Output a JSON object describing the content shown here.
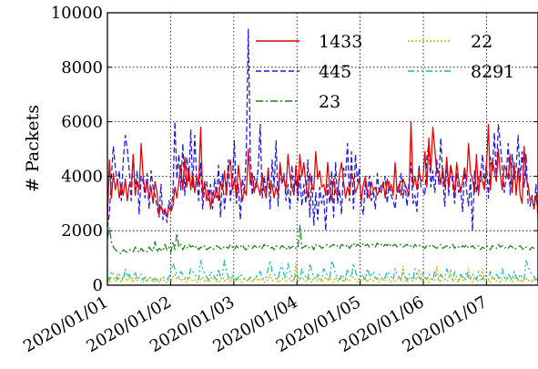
{
  "chart_data": {
    "type": "line",
    "title": "",
    "xlabel": "",
    "ylabel": "# Packets",
    "ylim": [
      0,
      10000
    ],
    "y_ticks": [
      "0",
      "2000",
      "4000",
      "6000",
      "8000",
      "10000"
    ],
    "x_ticks": [
      "2020/01/01",
      "2020/01/02",
      "2020/01/03",
      "2020/01/04",
      "2020/01/05",
      "2020/01/06",
      "2020/01/07"
    ],
    "grid": "dotted",
    "legend_position": "top-right",
    "series": [
      {
        "name": "1433",
        "color": "#e00000",
        "dash": "solid",
        "values": [
          2400,
          4600,
          3200,
          4100,
          3500,
          3900,
          3200,
          3700,
          3300,
          3900,
          3100,
          3700,
          3600,
          4800,
          3300,
          3800,
          3500,
          5200,
          4000,
          3400,
          3800,
          3200,
          3600,
          3000,
          3800,
          3400,
          2600,
          2900,
          2700,
          2800,
          2500,
          2900,
          2700,
          2900,
          3600,
          3200,
          3800,
          4400,
          3500,
          4700,
          3600,
          4300,
          3500,
          4100,
          3400,
          4000,
          3700,
          5800,
          3300,
          3800,
          3100,
          3500,
          2800,
          3400,
          3200,
          3600,
          3100,
          3800,
          3500,
          4200,
          3300,
          4300,
          4600,
          3500,
          3900,
          3200,
          4400,
          3800,
          3100,
          3500,
          3300,
          5000,
          3700,
          4100,
          3400,
          3800,
          3600,
          3300,
          4100,
          3500,
          3200,
          4300,
          3500,
          3700,
          3200,
          3600,
          3300,
          4500,
          3800,
          3900,
          3500,
          4800,
          4000,
          3600,
          3300,
          4400,
          3500,
          4800,
          4000,
          4500,
          3700,
          3200,
          4100,
          3600,
          3500,
          4900,
          3900,
          4200,
          3600,
          3700,
          3300,
          4500,
          3600,
          3100,
          3900,
          3400,
          3300,
          4100,
          4500,
          3800,
          3200,
          3600,
          3300,
          4100,
          3900,
          3400,
          3600,
          3900,
          3100,
          3700,
          4000,
          3400,
          3200,
          3800,
          3500,
          3600,
          3300,
          3500,
          3400,
          3800,
          3200,
          3900,
          3500,
          3700,
          3300,
          4500,
          3400,
          3700,
          3300,
          3900,
          3700,
          3500,
          3300,
          6000,
          3600,
          4000,
          3500,
          4200,
          3800,
          3900,
          4900,
          3600,
          5400,
          4200,
          5800,
          5000,
          4100,
          4200,
          3700,
          4300,
          3600,
          4700,
          3600,
          4400,
          4000,
          3300,
          4500,
          3900,
          3400,
          3800,
          4300,
          3800,
          5200,
          4100,
          3900,
          3400,
          4800,
          3300,
          4200,
          3800,
          3500,
          4300,
          5900,
          3500,
          4600,
          4200,
          3800,
          5000,
          4100,
          3500,
          4400,
          4200,
          3900,
          4800,
          3400,
          4500,
          3300,
          4300,
          3300,
          3000,
          5100,
          3900,
          3700,
          3100,
          3200,
          2800,
          3300,
          2700
        ]
      },
      {
        "name": "445",
        "color": "#1a1ad8",
        "dash": "dashed",
        "values": [
          2100,
          2600,
          4000,
          5100,
          4300,
          3800,
          4200,
          3100,
          4600,
          5500,
          5000,
          4200,
          3100,
          4800,
          3500,
          4200,
          2600,
          4000,
          3800,
          3200,
          4100,
          2800,
          4200,
          3600,
          3300,
          2900,
          2500,
          3700,
          2400,
          2800,
          2300,
          3100,
          2800,
          3300,
          6000,
          3900,
          4800,
          3500,
          5200,
          3300,
          4700,
          3800,
          5700,
          3600,
          5500,
          3900,
          3100,
          4500,
          2800,
          3600,
          3800,
          3100,
          3700,
          2800,
          3900,
          3200,
          4400,
          2500,
          4100,
          2800,
          3600,
          4600,
          3100,
          3900,
          5300,
          3000,
          3700,
          2400,
          3900,
          3400,
          4900,
          9400,
          4800,
          3300,
          4000,
          3600,
          4300,
          5900,
          3200,
          4000,
          3400,
          4200,
          2800,
          4600,
          3600,
          5300,
          2900,
          4300,
          3700,
          4100,
          3100,
          3700,
          2800,
          4400,
          3400,
          3900,
          3100,
          4100,
          2900,
          3700,
          3000,
          4600,
          2500,
          4000,
          2200,
          3400,
          2400,
          3600,
          3000,
          3300,
          2000,
          3700,
          3000,
          4200,
          2500,
          4500,
          3000,
          3500,
          2600,
          4300,
          4000,
          5200,
          3100,
          4900,
          2800,
          4800,
          3800,
          4300,
          2900,
          2600,
          3800,
          3200,
          4000,
          3100,
          3500,
          2800,
          4100,
          3400,
          3700,
          3600,
          4000,
          3000,
          3800,
          3300,
          3100,
          2800,
          3600,
          3400,
          4100,
          3200,
          3700,
          2900,
          3800,
          4500,
          3000,
          3300,
          2700,
          4400,
          3600,
          3500,
          3300,
          4700,
          5200,
          3600,
          4200,
          3400,
          4600,
          3700,
          5400,
          4000,
          2900,
          4600,
          3300,
          4400,
          3700,
          3000,
          4100,
          3400,
          3600,
          2700,
          4300,
          3500,
          2900,
          3900,
          2000,
          4200,
          3400,
          4000,
          3800,
          4800,
          3700,
          4500,
          3200,
          4700,
          4200,
          5600,
          3900,
          5900,
          5200,
          4300,
          3400,
          4000,
          5200,
          3300,
          4800,
          3900,
          4300,
          5500,
          3800,
          4900,
          3600,
          4800,
          3000,
          2900,
          3300,
          2800,
          3700,
          2400,
          3400,
          3000,
          3700,
          3800
        ]
      },
      {
        "name": "23",
        "color": "#148214",
        "dash": "dashdot",
        "values": [
          1700,
          2100,
          1600,
          1400,
          1300,
          1250,
          1200,
          1150,
          1300,
          1250,
          1200,
          1300,
          1280,
          1220,
          1400,
          1300,
          1200,
          1350,
          1250,
          1300,
          1220,
          1400,
          1300,
          1250,
          1600,
          1200,
          1350,
          1300,
          1250,
          1500,
          1300,
          1400,
          1200,
          1600,
          1300,
          1900,
          1400,
          1500,
          1300,
          1450,
          1350,
          1500,
          1400,
          1450,
          1350,
          1450,
          1300,
          1400,
          1350,
          1450,
          1300,
          1350,
          1400,
          1300,
          1350,
          1450,
          1400,
          1350,
          1300,
          1450,
          1400,
          1350,
          1500,
          1400,
          1300,
          1450,
          1350,
          1400,
          1500,
          1350,
          1300,
          1450,
          1400,
          1350,
          1450,
          1400,
          1350,
          1450,
          1350,
          1500,
          1400,
          1450,
          1350,
          1400,
          1300,
          1450,
          1400,
          1350,
          1450,
          1400,
          1300,
          1450,
          1350,
          1400,
          1450,
          1350,
          1350,
          2200,
          1350,
          1400,
          1450,
          1350,
          1400,
          1450,
          1300,
          1500,
          1400,
          1450,
          1350,
          1400,
          1450,
          1500,
          1400,
          1450,
          1500,
          1400,
          1450,
          1350,
          1500,
          1450,
          1400,
          1500,
          1350,
          1450,
          1550,
          1400,
          1500,
          1450,
          1400,
          1550,
          1450,
          1500,
          1400,
          1450,
          1500,
          1400,
          1550,
          1450,
          1500,
          1400,
          1500,
          1450,
          1550,
          1400,
          1450,
          1500,
          1400,
          1450,
          1500,
          1400,
          1450,
          1500,
          1400,
          1450,
          1350,
          1500,
          1400,
          1450,
          1500,
          1400,
          1350,
          1450,
          1400,
          1500,
          1450,
          1400,
          1350,
          1450,
          1500,
          1350,
          1400,
          1450,
          1350,
          1400,
          1500,
          1350,
          1450,
          1400,
          1350,
          1450,
          1400,
          1500,
          1350,
          1400,
          1450,
          1350,
          1400,
          1450,
          1300,
          1400,
          1350,
          1450,
          1400,
          1300,
          1450,
          1400,
          1350,
          1500,
          1400,
          1450,
          1350,
          1400,
          1350,
          1450,
          1400,
          1300,
          1350,
          1400,
          1450,
          1350,
          1300,
          1400,
          1350,
          1300,
          1400,
          1350,
          1300
        ]
      },
      {
        "name": "22",
        "color": "#c8b400",
        "dash": "dotted",
        "values": [
          200,
          100,
          300,
          250,
          150,
          400,
          200,
          100,
          300,
          250,
          150,
          300,
          200,
          100,
          250,
          150,
          300,
          200,
          100,
          200,
          150,
          300,
          250,
          100,
          200,
          150,
          100,
          250,
          200,
          150,
          100,
          200,
          150,
          300,
          400,
          200,
          300,
          150,
          250,
          200,
          100,
          300,
          250,
          150,
          200,
          100,
          250,
          200,
          300,
          150,
          200,
          100,
          250,
          300,
          200,
          150,
          100,
          200,
          300,
          150,
          250,
          200,
          100,
          300,
          200,
          150,
          250,
          200,
          100,
          300,
          150,
          200,
          250,
          100,
          200,
          300,
          150,
          250,
          200,
          100,
          150,
          200,
          400,
          150,
          200,
          250,
          100,
          150,
          200,
          300,
          150,
          200,
          250,
          100,
          200,
          800,
          150,
          250,
          300,
          200,
          150,
          300,
          250,
          100,
          300,
          200,
          150,
          250,
          100,
          200,
          300,
          150,
          250,
          200,
          100,
          300,
          150,
          200,
          250,
          100,
          300,
          200,
          150,
          250,
          300,
          200,
          100,
          250,
          150,
          200,
          300,
          100,
          250,
          200,
          150,
          300,
          200,
          100,
          250,
          200,
          150,
          300,
          200,
          100,
          250,
          150,
          200,
          300,
          150,
          700,
          200,
          100,
          250,
          200,
          150,
          300,
          200,
          600,
          250,
          150,
          300,
          200,
          100,
          250,
          200,
          150,
          700,
          200,
          100,
          300,
          250,
          150,
          200,
          600,
          150,
          250,
          200,
          100,
          300,
          200,
          150,
          250,
          600,
          200,
          100,
          300,
          250,
          150,
          200,
          600,
          150,
          250,
          200,
          100,
          300,
          200,
          150,
          250,
          100,
          200,
          300,
          150,
          250,
          200,
          100,
          300,
          250,
          150,
          200,
          100,
          300,
          250,
          150,
          200,
          100,
          250,
          150,
          200,
          300,
          150,
          200,
          250
        ]
      },
      {
        "name": "8291",
        "color": "#1ab8b8",
        "dash": "dashdotdot",
        "values": [
          300,
          200,
          500,
          400,
          300,
          200,
          400,
          300,
          200,
          600,
          300,
          400,
          200,
          300,
          500,
          200,
          300,
          400,
          200,
          300,
          150,
          200,
          300,
          200,
          250,
          200,
          150,
          200,
          300,
          250,
          200,
          300,
          500,
          800,
          600,
          400,
          300,
          500,
          400,
          300,
          200,
          300,
          600,
          500,
          400,
          300,
          200,
          900,
          600,
          400,
          300,
          200,
          500,
          400,
          300,
          200,
          600,
          300,
          400,
          900,
          500,
          300,
          200,
          400,
          300,
          200,
          300,
          400,
          300,
          200,
          150,
          200,
          300,
          250,
          200,
          300,
          400,
          500,
          300,
          200,
          300,
          600,
          900,
          500,
          400,
          300,
          200,
          600,
          700,
          400,
          300,
          800,
          500,
          300,
          200,
          400,
          300,
          200,
          600,
          400,
          300,
          200,
          800,
          500,
          300,
          200,
          400,
          300,
          200,
          600,
          500,
          300,
          200,
          900,
          700,
          400,
          300,
          200,
          400,
          300,
          200,
          600,
          400,
          300,
          800,
          500,
          300,
          200,
          400,
          300,
          200,
          600,
          400,
          300,
          500,
          300,
          200,
          400,
          300,
          200,
          300,
          500,
          400,
          300,
          200,
          600,
          400,
          300,
          200,
          500,
          300,
          200,
          400,
          300,
          200,
          600,
          400,
          300,
          200,
          500,
          300,
          200,
          400,
          300,
          200,
          500,
          300,
          200,
          400,
          300,
          200,
          600,
          400,
          300,
          200,
          500,
          300,
          200,
          400,
          300,
          200,
          500,
          300,
          200,
          400,
          300,
          200,
          500,
          300,
          200,
          400,
          300,
          200,
          500,
          300,
          200,
          400,
          300,
          200,
          600,
          300,
          200,
          400,
          300,
          200,
          500,
          300,
          200,
          400,
          300,
          200,
          900,
          700,
          500,
          400,
          300,
          200,
          300
        ]
      }
    ]
  }
}
